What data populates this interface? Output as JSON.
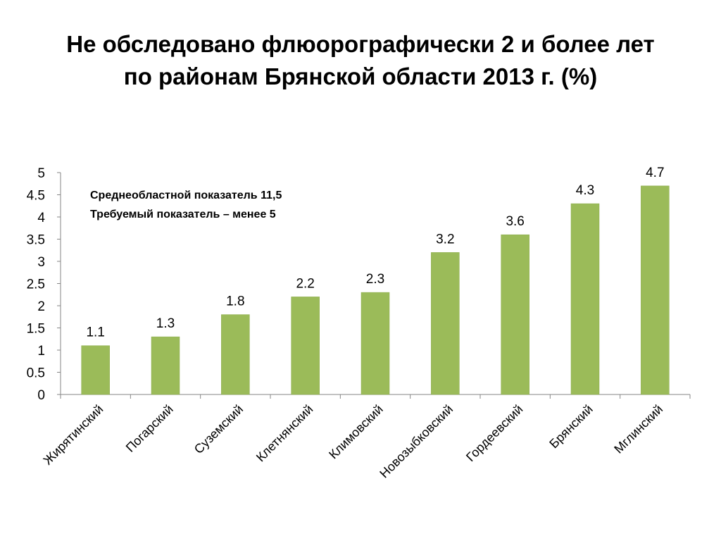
{
  "title": {
    "line1": "Не обследовано флюорографически 2 и более лет",
    "line2": "по районам Брянской области 2013 г. (%)"
  },
  "annotations": [
    "Среднеобластной показатель 11,5",
    "Требуемый показатель – менее 5"
  ],
  "colors": {
    "bar": "#9bbb59",
    "axis": "#868686",
    "text": "#000000"
  },
  "chart_data": {
    "type": "bar",
    "title": "Не обследовано флюорографически 2 и более лет по районам Брянской области 2013 г. (%)",
    "categories": [
      "Жирятинский",
      "Погарский",
      "Суземский",
      "Клетнянский",
      "Климовский",
      "Новозыбковский",
      "Гордеевский",
      "Брянский",
      "Мглинский"
    ],
    "values": [
      1.1,
      1.3,
      1.8,
      2.2,
      2.3,
      3.2,
      3.6,
      4.3,
      4.7
    ],
    "data_labels": [
      "1.1",
      "1.3",
      "1.8",
      "2.2",
      "2.3",
      "3.2",
      "3.6",
      "4.3",
      "4.7"
    ],
    "ylim": [
      0,
      5
    ],
    "yticks": [
      "0",
      "0.5",
      "1",
      "1.5",
      "2",
      "2.5",
      "3",
      "3.5",
      "4",
      "4.5",
      "5"
    ],
    "xlabel": "",
    "ylabel": "",
    "grid": false,
    "legend": "none"
  }
}
